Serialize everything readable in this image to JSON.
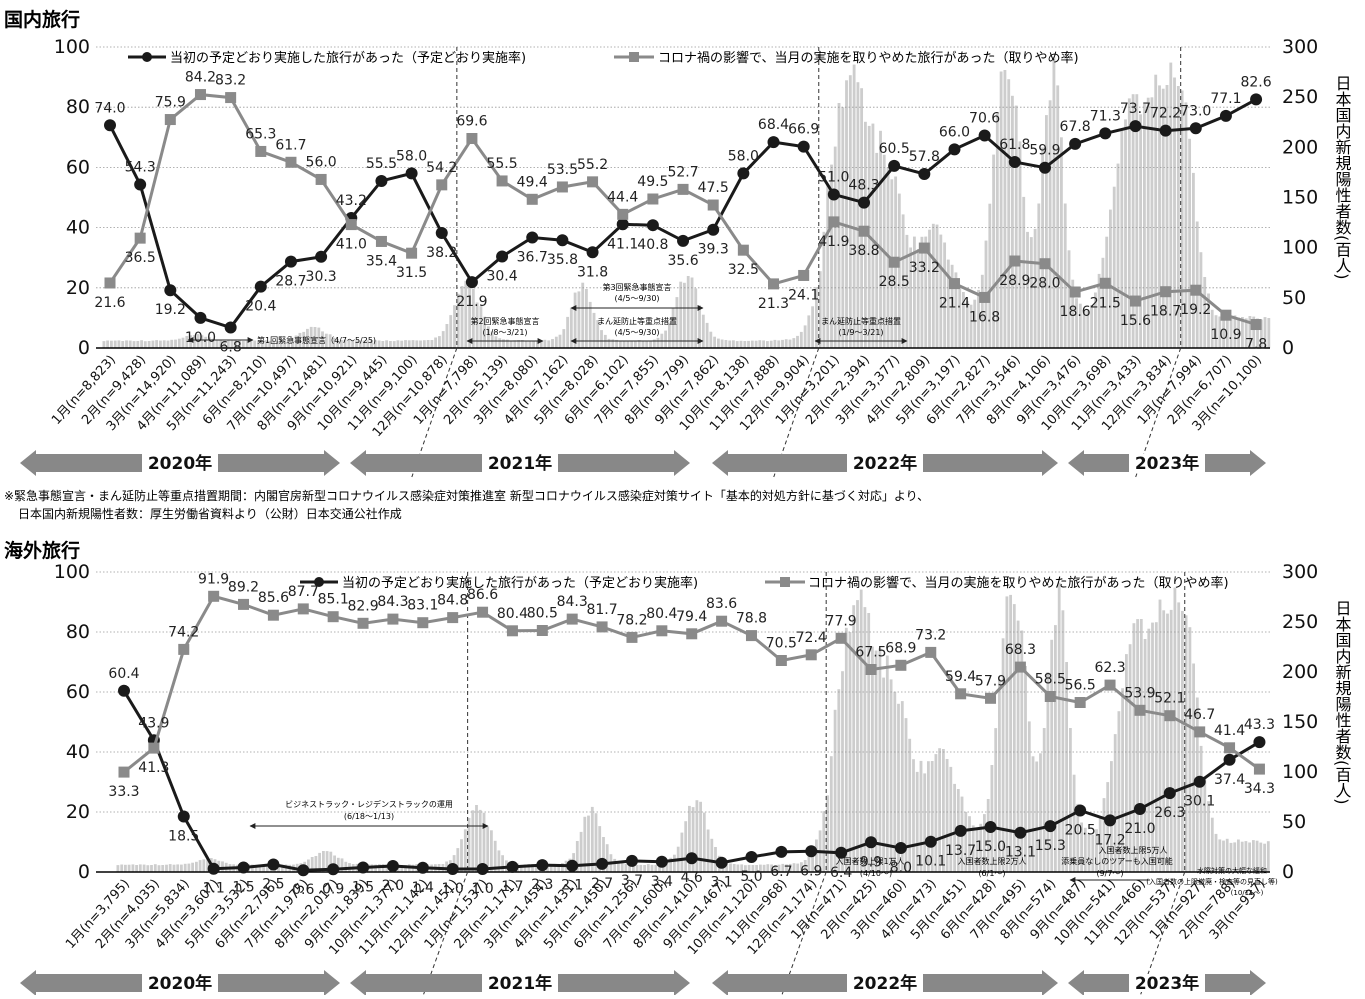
{
  "charts": [
    {
      "title": "国内旅行",
      "legend1": "当初の予定どおり実施した旅行があった（予定どおり実施率)",
      "legend2": "コロナ禍の影響で、当月の実施を取りやめた旅行があった（取りやめ率)",
      "right_axis_label": "日本国内新規陽性者数(百人)",
      "annotations": [
        "第1回緊急事態宣言（4/7～5/25)",
        "第2回緊急事態宣言",
        "(1/8～3/21)",
        "第3回緊急事態宣言",
        "(4/5～9/30)",
        "まん延防止等重点措置",
        "(4/5～9/30)",
        "まん延防止等重点措置",
        "(1/9～3/21)"
      ],
      "years": [
        "2020年",
        "2021年",
        "2022年",
        "2023年"
      ],
      "footnote1": "※緊急事態宣言・まん延防止等重点措置期間：内閣官房新型コロナウイルス感染症対策推進室 新型コロナウイルス感染症対策サイト「基本的対処方針に基づく対応」より、",
      "footnote2": "日本国内新規陽性者数：厚生労働省資料より（公財）日本交通公社作成"
    },
    {
      "title": "海外旅行",
      "legend1": "当初の予定どおり実施した旅行があった（予定どおり実施率)",
      "legend2": "コロナ禍の影響で、当月の実施を取りやめた旅行があった（取りやめ率)",
      "right_axis_label": "日本国内新規陽性者数(百人)",
      "annotations": [
        "ビジネストラック・レジデンストラックの運用",
        "(6/18～1/13)",
        "入国者数上限1万人",
        "(4/10～)",
        "入国者数上限2万人",
        "(6/1～)",
        "入国者数上限5万人",
        "添乗員なしのツアーも入国可能",
        "(9/7～)",
        "水際対策の大幅な緩和",
        "(入国者数の上限撤廃・検査等の見直し等)",
        "(10/11～)"
      ],
      "years": [
        "2020年",
        "2021年",
        "2022年",
        "2023年"
      ]
    }
  ],
  "colors": {
    "black_series": "#1a1a1a",
    "gray_series": "#8a8a8a",
    "bars": "#cdcdcd",
    "arrow": "#888888"
  },
  "chart_data": [
    {
      "type": "line",
      "title": "国内旅行",
      "x": [
        "1月(n=8,823)",
        "2月(n=9,428)",
        "3月(n=14,920)",
        "4月(n=11,089)",
        "5月(n=11,243)",
        "6月(n=8,210)",
        "7月(n=10,497)",
        "8月(n=12,481)",
        "9月(n=10,921)",
        "10月(n=9,445)",
        "11月(n=9,100)",
        "12月(n=10,878)",
        "1月(n=7,798)",
        "2月(n=5,139)",
        "3月(n=8,080)",
        "4月(n=7,162)",
        "5月(n=8,028)",
        "6月(n=6,102)",
        "7月(n=7,855)",
        "8月(n=9,799)",
        "9月(n=7,862)",
        "10月(n=8,138)",
        "11月(n=7,888)",
        "12月(n=9,904)",
        "1月(n=3,201)",
        "2月(n=2,394)",
        "3月(n=3,377)",
        "4月(n=2,809)",
        "5月(n=3,197)",
        "6月(n=2,827)",
        "7月(n=3,546)",
        "8月(n=4,106)",
        "9月(n=3,476)",
        "10月(n=3,698)",
        "11月(n=3,433)",
        "12月(n=3,834)",
        "1月(n=7,994)",
        "2月(n=6,707)",
        "3月(n=10,100)"
      ],
      "series": [
        {
          "name": "当初の予定どおり実施した旅行があった（予定どおり実施率)",
          "values": [
            74.0,
            54.3,
            19.2,
            10.0,
            6.8,
            20.4,
            28.7,
            30.3,
            43.2,
            55.5,
            58.0,
            38.2,
            21.9,
            30.4,
            36.7,
            35.8,
            31.8,
            41.1,
            40.8,
            35.6,
            39.3,
            58.0,
            68.4,
            66.9,
            51.0,
            48.3,
            60.5,
            57.8,
            66.0,
            70.6,
            61.8,
            59.9,
            67.8,
            71.3,
            73.7,
            72.2,
            73.0,
            77.1,
            82.6
          ]
        },
        {
          "name": "コロナ禍の影響で、当月の実施を取りやめた旅行があった（取りやめ率)",
          "values": [
            21.6,
            36.5,
            75.9,
            84.2,
            83.2,
            65.3,
            61.7,
            56.0,
            41.0,
            35.4,
            31.5,
            54.2,
            69.6,
            55.5,
            49.4,
            53.5,
            55.2,
            44.4,
            49.5,
            52.7,
            47.5,
            32.5,
            21.3,
            24.1,
            41.9,
            38.8,
            28.5,
            33.2,
            21.4,
            16.8,
            28.9,
            28.0,
            18.6,
            21.5,
            15.6,
            18.7,
            19.2,
            10.9,
            7.8
          ]
        }
      ],
      "ylim": [
        0,
        100
      ],
      "y2lim": [
        0,
        300
      ],
      "y2label": "日本国内新規陽性者数(百人)"
    },
    {
      "type": "line",
      "title": "海外旅行",
      "x": [
        "1月(n=3,795)",
        "2月(n=4,035)",
        "3月(n=5,834)",
        "4月(n=3,607)",
        "5月(n=3,532)",
        "6月(n=2,796)",
        "7月(n=1,975)",
        "8月(n=2,017)",
        "9月(n=1,839)",
        "10月(n=1,377)",
        "11月(n=1,142)",
        "12月(n=1,451)",
        "1月(n=1,537)",
        "2月(n=1,171)",
        "3月(n=1,454)",
        "4月(n=1,431)",
        "5月(n=1,450)",
        "6月(n=1,256)",
        "7月(n=1,600)",
        "8月(n=1,410)",
        "9月(n=1,467)",
        "10月(n=1,120)",
        "11月(n=968)",
        "12月(n=1,174)",
        "1月(n=471)",
        "2月(n=425)",
        "3月(n=460)",
        "4月(n=473)",
        "5月(n=451)",
        "6月(n=428)",
        "7月(n=495)",
        "8月(n=574)",
        "9月(n=487)",
        "10月(n=541)",
        "11月(n=466)",
        "12月(n=537)",
        "1月(n=927)",
        "2月(n=788)",
        "3月(n=937)"
      ],
      "series": [
        {
          "name": "当初の予定どおり実施した旅行があった（予定どおり実施率)",
          "values": [
            60.4,
            43.9,
            18.5,
            1.1,
            1.5,
            2.5,
            0.6,
            0.9,
            1.5,
            2.0,
            1.4,
            1.0,
            1.0,
            1.7,
            2.3,
            2.1,
            2.7,
            3.7,
            3.4,
            4.6,
            3.1,
            5.0,
            6.7,
            6.9,
            6.4,
            9.9,
            8.0,
            10.1,
            13.7,
            15.0,
            13.1,
            15.3,
            20.5,
            17.2,
            21.0,
            26.3,
            30.1,
            37.4,
            43.3
          ]
        },
        {
          "name": "コロナ禍の影響で、当月の実施を取りやめた旅行があった（取りやめ率)",
          "values": [
            33.3,
            41.3,
            74.2,
            91.9,
            89.2,
            85.6,
            87.7,
            85.1,
            82.9,
            84.3,
            83.1,
            84.8,
            86.6,
            80.4,
            80.5,
            84.3,
            81.7,
            78.2,
            80.4,
            79.4,
            83.6,
            78.8,
            70.5,
            72.4,
            77.9,
            67.5,
            68.9,
            73.2,
            59.4,
            57.9,
            68.3,
            58.5,
            56.5,
            62.3,
            53.9,
            52.1,
            46.7,
            41.4,
            34.3
          ]
        }
      ],
      "ylim": [
        0,
        100
      ],
      "y2lim": [
        0,
        300
      ],
      "y2label": "日本国内新規陽性者数(百人)"
    }
  ]
}
